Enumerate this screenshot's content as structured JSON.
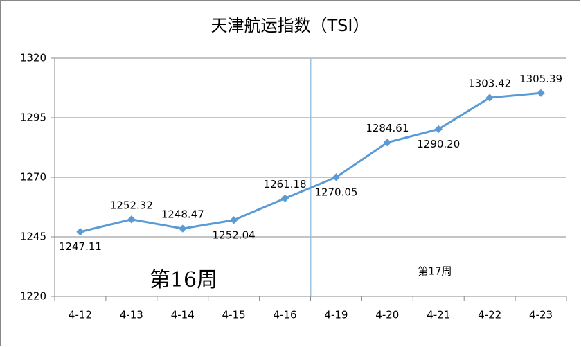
{
  "chart_data": {
    "type": "line",
    "title": "天津航运指数（TSI）",
    "categories": [
      "4-12",
      "4-13",
      "4-14",
      "4-15",
      "4-16",
      "4-19",
      "4-20",
      "4-21",
      "4-22",
      "4-23"
    ],
    "series": [
      {
        "name": "TSI",
        "color": "#5b9bd5",
        "values": [
          1247.11,
          1252.32,
          1248.47,
          1252.04,
          1261.18,
          1270.05,
          1284.61,
          1290.2,
          1303.42,
          1305.39
        ],
        "value_labels": [
          "1247.11",
          "1252.32",
          "1248.47",
          "1252.04",
          "1261.18",
          "1270.05",
          "1284.61",
          "1290.20",
          "1303.42",
          "1305.39"
        ]
      }
    ],
    "ylim": [
      1220,
      1320
    ],
    "yticks": [
      1220,
      1245,
      1270,
      1295,
      1320
    ],
    "grid": true,
    "annotations": [
      "第16周",
      "第17周"
    ]
  }
}
